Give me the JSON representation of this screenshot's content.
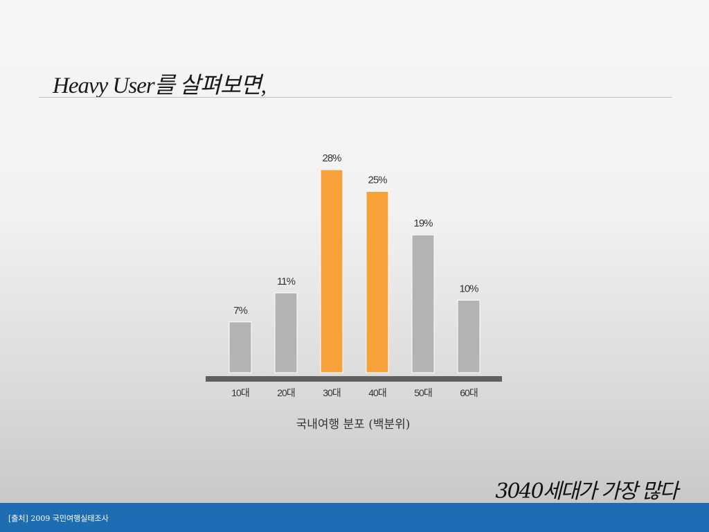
{
  "slide": {
    "title": "Heavy User를 살펴보면,",
    "conclusion": "3040세대가 가장 많다",
    "source": "[출처] 2009 국민여행실태조사"
  },
  "colors": {
    "highlight": "#f7a13a",
    "normal": "#b3b3b3",
    "baseline": "#5f5f5f",
    "footer": "#1e6db3"
  },
  "chart_data": {
    "type": "bar",
    "title": "",
    "caption": "국내여행 분포 (백분위)",
    "xlabel": "",
    "ylabel": "",
    "categories": [
      "10대",
      "20대",
      "30대",
      "40대",
      "50대",
      "60대"
    ],
    "values": [
      7,
      11,
      28,
      25,
      19,
      10
    ],
    "value_labels": [
      "7%",
      "11%",
      "28%",
      "25%",
      "19%",
      "10%"
    ],
    "highlighted": [
      "30대",
      "40대"
    ],
    "ylim": [
      0,
      28
    ],
    "grid": false,
    "legend": "none"
  }
}
